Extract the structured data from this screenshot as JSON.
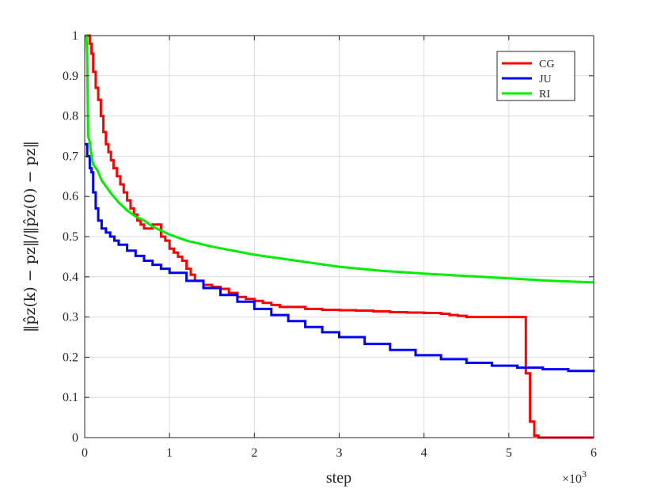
{
  "chart_data": {
    "type": "line",
    "xlabel": "step",
    "x_multiplier_label": "×10",
    "x_multiplier_exp": "3",
    "ylabel": "‖p̂z(k) − pz‖/‖p̂z(0) − pz‖",
    "xlim": [
      0,
      6000
    ],
    "ylim": [
      0,
      1
    ],
    "xticks": [
      0,
      1000,
      2000,
      3000,
      4000,
      5000,
      6000
    ],
    "xtick_labels": [
      "0",
      "1",
      "2",
      "3",
      "4",
      "5",
      "6"
    ],
    "yticks": [
      0,
      0.1,
      0.2,
      0.3,
      0.4,
      0.5,
      0.6,
      0.7,
      0.8,
      0.9,
      1
    ],
    "ytick_labels": [
      "0",
      "0.1",
      "0.2",
      "0.3",
      "0.4",
      "0.5",
      "0.6",
      "0.7",
      "0.8",
      "0.9",
      "1"
    ],
    "grid": true,
    "legend_position": "top-right",
    "series": [
      {
        "name": "CG",
        "color": "#ff0000",
        "step": true,
        "x": [
          0,
          20,
          40,
          60,
          80,
          100,
          130,
          160,
          190,
          220,
          250,
          280,
          310,
          340,
          380,
          420,
          460,
          500,
          540,
          580,
          620,
          660,
          700,
          750,
          800,
          850,
          900,
          950,
          1000,
          1050,
          1100,
          1150,
          1200,
          1250,
          1300,
          1400,
          1500,
          1600,
          1700,
          1800,
          1900,
          2000,
          2100,
          2200,
          2300,
          2400,
          2600,
          2800,
          3000,
          3200,
          3400,
          3600,
          3800,
          4000,
          4200,
          4300,
          4400,
          4500,
          4600,
          4800,
          5000,
          5150,
          5200,
          5250,
          5300,
          5350,
          5400,
          5600,
          6000
        ],
        "y": [
          1.0,
          1.0,
          1.0,
          0.98,
          0.955,
          0.91,
          0.87,
          0.84,
          0.8,
          0.76,
          0.73,
          0.71,
          0.69,
          0.67,
          0.65,
          0.63,
          0.61,
          0.59,
          0.57,
          0.555,
          0.54,
          0.53,
          0.52,
          0.52,
          0.53,
          0.53,
          0.5,
          0.49,
          0.47,
          0.46,
          0.45,
          0.44,
          0.42,
          0.405,
          0.39,
          0.38,
          0.375,
          0.37,
          0.36,
          0.35,
          0.345,
          0.34,
          0.335,
          0.33,
          0.325,
          0.325,
          0.32,
          0.318,
          0.317,
          0.316,
          0.314,
          0.312,
          0.311,
          0.31,
          0.308,
          0.305,
          0.303,
          0.3,
          0.3,
          0.3,
          0.3,
          0.3,
          0.16,
          0.04,
          0.005,
          0.0,
          0.0,
          0.0,
          0.0
        ]
      },
      {
        "name": "JU",
        "color": "#0000ff",
        "step": true,
        "x": [
          0,
          30,
          60,
          80,
          100,
          130,
          160,
          200,
          250,
          300,
          350,
          400,
          500,
          600,
          700,
          800,
          900,
          1000,
          1200,
          1400,
          1600,
          1800,
          2000,
          2200,
          2400,
          2600,
          2800,
          3000,
          3300,
          3600,
          3900,
          4200,
          4500,
          4800,
          5100,
          5400,
          5700,
          6000
        ],
        "y": [
          0.73,
          0.7,
          0.67,
          0.66,
          0.61,
          0.57,
          0.54,
          0.52,
          0.51,
          0.5,
          0.49,
          0.48,
          0.465,
          0.452,
          0.44,
          0.43,
          0.42,
          0.41,
          0.39,
          0.372,
          0.355,
          0.338,
          0.32,
          0.305,
          0.29,
          0.275,
          0.262,
          0.25,
          0.233,
          0.218,
          0.205,
          0.195,
          0.186,
          0.179,
          0.174,
          0.17,
          0.166,
          0.163
        ]
      },
      {
        "name": "RI",
        "color": "#00ee00",
        "step": false,
        "x": [
          0,
          20,
          30,
          40,
          60,
          80,
          100,
          150,
          200,
          300,
          400,
          500,
          600,
          700,
          800,
          900,
          1000,
          1200,
          1500,
          2000,
          2500,
          3000,
          3500,
          4000,
          4500,
          5000,
          5500,
          6000
        ],
        "y": [
          1.0,
          1.0,
          0.95,
          0.75,
          0.735,
          0.7,
          0.68,
          0.665,
          0.64,
          0.61,
          0.585,
          0.565,
          0.55,
          0.54,
          0.525,
          0.515,
          0.505,
          0.49,
          0.475,
          0.455,
          0.44,
          0.425,
          0.415,
          0.408,
          0.402,
          0.396,
          0.39,
          0.386
        ]
      }
    ]
  }
}
